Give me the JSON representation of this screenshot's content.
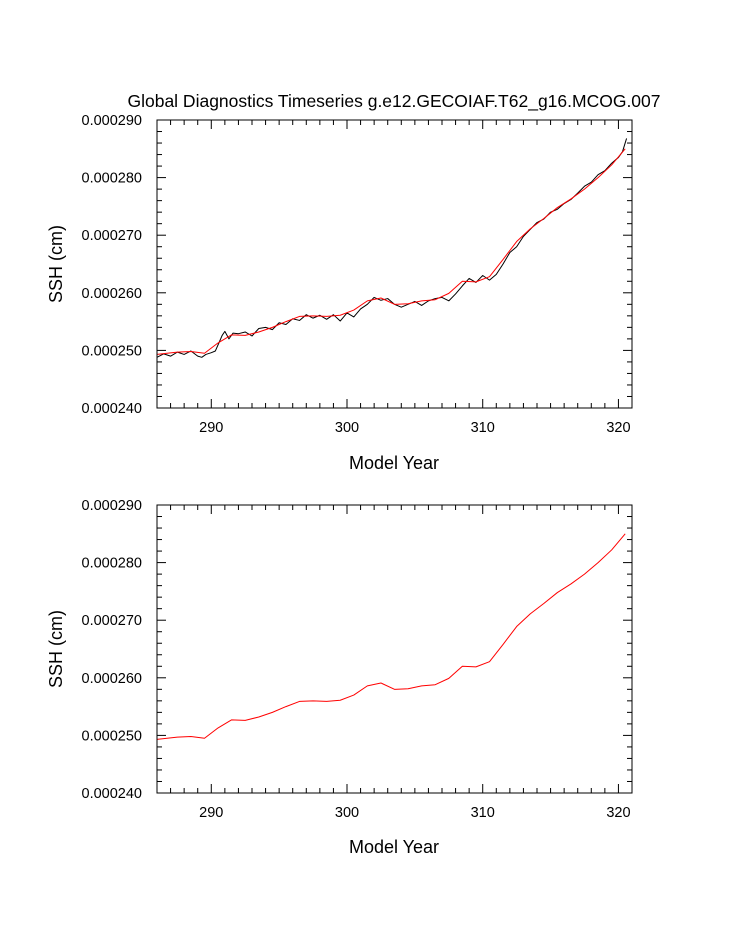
{
  "title": "Global Diagnostics Timeseries g.e12.GECOIAF.T62_g16.MCOG.007",
  "chart_data": [
    {
      "type": "line",
      "xlabel": "Model Year",
      "ylabel": "SSH (cm)",
      "xlim": [
        286,
        321
      ],
      "ylim": [
        0.00024,
        0.00029
      ],
      "xticks": [
        "290",
        "300",
        "310",
        "320"
      ],
      "yticks": [
        "0.000240",
        "0.000250",
        "0.000260",
        "0.000270",
        "0.000280",
        "0.000290"
      ],
      "series": [
        {
          "color": "#000000",
          "x": [
            286.0,
            286.5,
            287.0,
            287.5,
            288.0,
            288.5,
            289.0,
            289.3,
            289.6,
            290.0,
            290.3,
            290.6,
            290.8,
            291.0,
            291.3,
            291.6,
            292.0,
            292.5,
            293.0,
            293.5,
            294.0,
            294.5,
            295.0,
            295.5,
            296.0,
            296.5,
            297.0,
            297.5,
            298.0,
            298.5,
            299.0,
            299.5,
            300.0,
            300.5,
            301.0,
            301.5,
            302.0,
            302.5,
            303.0,
            303.5,
            304.0,
            304.5,
            305.0,
            305.5,
            306.0,
            306.5,
            307.0,
            307.5,
            308.0,
            308.5,
            309.0,
            309.5,
            310.0,
            310.5,
            311.0,
            311.5,
            312.0,
            312.5,
            313.0,
            313.5,
            314.0,
            314.5,
            315.0,
            315.5,
            316.0,
            316.5,
            317.0,
            317.5,
            318.0,
            318.5,
            319.0,
            319.5,
            320.0,
            320.3,
            320.6
          ],
          "values": [
            0.0002488,
            0.0002494,
            0.000249,
            0.0002497,
            0.0002493,
            0.0002499,
            0.000249,
            0.0002488,
            0.0002493,
            0.0002496,
            0.0002499,
            0.0002515,
            0.0002526,
            0.0002533,
            0.000252,
            0.000253,
            0.0002529,
            0.0002532,
            0.0002525,
            0.0002538,
            0.000254,
            0.0002536,
            0.0002548,
            0.0002545,
            0.0002555,
            0.0002552,
            0.0002562,
            0.0002556,
            0.0002561,
            0.0002554,
            0.0002562,
            0.0002551,
            0.0002565,
            0.0002558,
            0.0002572,
            0.000258,
            0.0002592,
            0.0002587,
            0.000259,
            0.000258,
            0.0002575,
            0.000258,
            0.0002585,
            0.0002578,
            0.0002586,
            0.000259,
            0.0002592,
            0.0002586,
            0.0002598,
            0.0002612,
            0.0002625,
            0.0002618,
            0.000263,
            0.0002622,
            0.0002632,
            0.000265,
            0.000267,
            0.000268,
            0.0002698,
            0.000271,
            0.0002722,
            0.0002728,
            0.000274,
            0.0002745,
            0.0002755,
            0.0002762,
            0.0002773,
            0.0002785,
            0.0002792,
            0.0002805,
            0.0002812,
            0.0002825,
            0.0002835,
            0.0002845,
            0.0002868
          ]
        },
        {
          "color": "#ff0000",
          "x": [
            286.0,
            287.5,
            288.5,
            289.5,
            290.5,
            291.5,
            292.5,
            293.5,
            294.5,
            295.5,
            296.5,
            297.5,
            298.5,
            299.5,
            300.5,
            301.5,
            302.5,
            303.5,
            304.5,
            305.5,
            306.5,
            307.5,
            308.5,
            309.5,
            310.5,
            311.5,
            312.5,
            313.5,
            314.5,
            315.5,
            316.5,
            317.5,
            318.5,
            319.5,
            320.5
          ],
          "values": [
            0.0002493,
            0.0002497,
            0.0002498,
            0.0002495,
            0.0002513,
            0.0002527,
            0.0002526,
            0.0002532,
            0.000254,
            0.000255,
            0.0002559,
            0.000256,
            0.0002559,
            0.0002561,
            0.000257,
            0.0002586,
            0.0002591,
            0.000258,
            0.0002581,
            0.0002586,
            0.0002588,
            0.0002599,
            0.000262,
            0.0002619,
            0.0002628,
            0.0002658,
            0.0002689,
            0.0002711,
            0.0002729,
            0.0002748,
            0.0002763,
            0.000278,
            0.00028,
            0.0002822,
            0.000285
          ]
        }
      ]
    },
    {
      "type": "line",
      "xlabel": "Model Year",
      "ylabel": "SSH (cm)",
      "xlim": [
        286,
        321
      ],
      "ylim": [
        0.00024,
        0.00029
      ],
      "xticks": [
        "290",
        "300",
        "310",
        "320"
      ],
      "yticks": [
        "0.000240",
        "0.000250",
        "0.000260",
        "0.000270",
        "0.000280",
        "0.000290"
      ],
      "series": [
        {
          "color": "#ff0000",
          "x": [
            286.0,
            287.5,
            288.5,
            289.5,
            290.5,
            291.5,
            292.5,
            293.5,
            294.5,
            295.5,
            296.5,
            297.5,
            298.5,
            299.5,
            300.5,
            301.5,
            302.5,
            303.5,
            304.5,
            305.5,
            306.5,
            307.5,
            308.5,
            309.5,
            310.5,
            311.5,
            312.5,
            313.5,
            314.5,
            315.5,
            316.5,
            317.5,
            318.5,
            319.5,
            320.5
          ],
          "values": [
            0.0002493,
            0.0002497,
            0.0002498,
            0.0002495,
            0.0002513,
            0.0002527,
            0.0002526,
            0.0002532,
            0.000254,
            0.000255,
            0.0002559,
            0.000256,
            0.0002559,
            0.0002561,
            0.000257,
            0.0002586,
            0.0002591,
            0.000258,
            0.0002581,
            0.0002586,
            0.0002588,
            0.0002599,
            0.000262,
            0.0002619,
            0.0002628,
            0.0002658,
            0.0002689,
            0.0002711,
            0.0002729,
            0.0002748,
            0.0002763,
            0.000278,
            0.00028,
            0.0002822,
            0.000285
          ]
        }
      ]
    }
  ]
}
